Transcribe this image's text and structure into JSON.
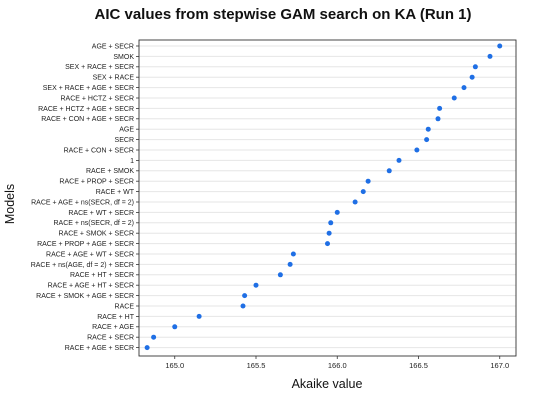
{
  "chart_data": {
    "type": "scatter",
    "title": "AIC values from stepwise GAM search on KA (Run 1)",
    "xlabel": "Akaike value",
    "ylabel": "Models",
    "xlim": [
      164.78,
      167.1
    ],
    "xticks": [
      165.0,
      165.5,
      166.0,
      166.5,
      167.0
    ],
    "xtick_labels": [
      "165.0",
      "165.5",
      "166.0",
      "166.5",
      "167.0"
    ],
    "grid": true,
    "point_color": "#1f6fe5",
    "points": [
      {
        "model": "AGE + SECR",
        "aic": 167.0
      },
      {
        "model": "SMOK",
        "aic": 166.94
      },
      {
        "model": "SEX + RACE + SECR",
        "aic": 166.85
      },
      {
        "model": "SEX + RACE",
        "aic": 166.83
      },
      {
        "model": "SEX + RACE + AGE + SECR",
        "aic": 166.78
      },
      {
        "model": "RACE + HCTZ + SECR",
        "aic": 166.72
      },
      {
        "model": "RACE + HCTZ + AGE + SECR",
        "aic": 166.63
      },
      {
        "model": "RACE + CON + AGE + SECR",
        "aic": 166.62
      },
      {
        "model": "AGE",
        "aic": 166.56
      },
      {
        "model": "SECR",
        "aic": 166.55
      },
      {
        "model": "RACE + CON + SECR",
        "aic": 166.49
      },
      {
        "model": "1",
        "aic": 166.38
      },
      {
        "model": "RACE + SMOK",
        "aic": 166.32
      },
      {
        "model": "RACE + PROP + SECR",
        "aic": 166.19
      },
      {
        "model": "RACE + WT",
        "aic": 166.16
      },
      {
        "model": "RACE + AGE + ns(SECR, df = 2)",
        "aic": 166.11
      },
      {
        "model": "RACE + WT + SECR",
        "aic": 166.0
      },
      {
        "model": "RACE + ns(SECR, df = 2)",
        "aic": 165.96
      },
      {
        "model": "RACE + SMOK + SECR",
        "aic": 165.95
      },
      {
        "model": "RACE + PROP + AGE + SECR",
        "aic": 165.94
      },
      {
        "model": "RACE + AGE + WT + SECR",
        "aic": 165.73
      },
      {
        "model": "RACE + ns(AGE, df = 2) + SECR",
        "aic": 165.71
      },
      {
        "model": "RACE + HT + SECR",
        "aic": 165.65
      },
      {
        "model": "RACE + AGE + HT + SECR",
        "aic": 165.5
      },
      {
        "model": "RACE + SMOK + AGE + SECR",
        "aic": 165.43
      },
      {
        "model": "RACE",
        "aic": 165.42
      },
      {
        "model": "RACE + HT",
        "aic": 165.15
      },
      {
        "model": "RACE + AGE",
        "aic": 165.0
      },
      {
        "model": "RACE + SECR",
        "aic": 164.87
      },
      {
        "model": "RACE + AGE + SECR",
        "aic": 164.83
      }
    ]
  }
}
